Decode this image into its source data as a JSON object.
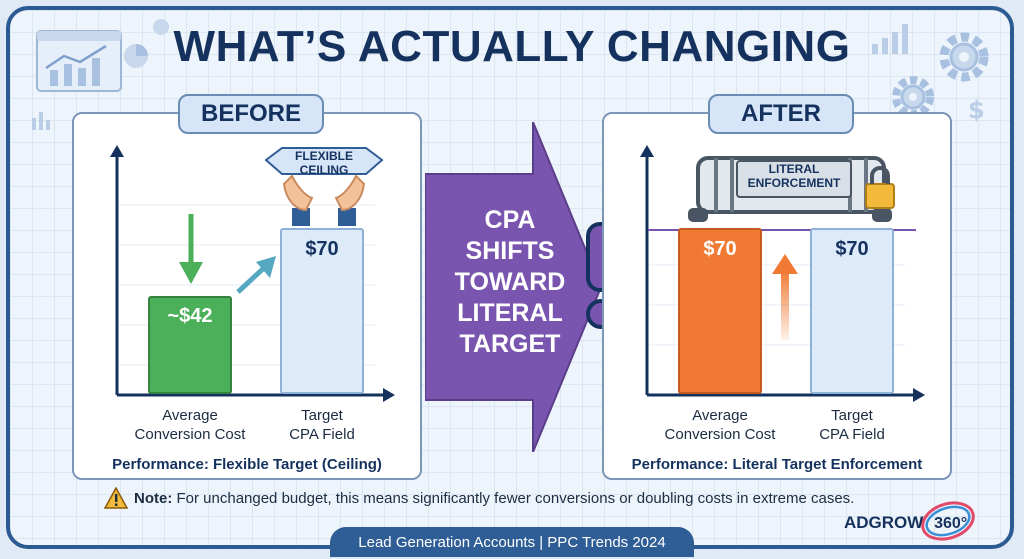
{
  "title": "WHAT’S ACTUALLY CHANGING",
  "before": {
    "tag": "BEFORE",
    "badge_line1": "FLEXIBLE",
    "badge_line2": "CEILING",
    "bar1_value": "~$42",
    "bar2_value": "$70",
    "bar1_label_line1": "Average",
    "bar1_label_line2": "Conversion Cost",
    "bar2_label_line1": "Target",
    "bar2_label_line2": "CPA Field",
    "caption": "Performance: Flexible Target (Ceiling)"
  },
  "middle": {
    "line1": "CPA",
    "line2": "SHIFTS",
    "line3": "TOWARD",
    "line4": "LITERAL",
    "line5": "TARGET"
  },
  "after": {
    "tag": "AFTER",
    "badge_line1": "LITERAL",
    "badge_line2": "ENFORCEMENT",
    "bar1_value": "$70",
    "bar2_value": "$70",
    "bar1_label_line1": "Average",
    "bar1_label_line2": "Conversion Cost",
    "bar2_label_line1": "Target",
    "bar2_label_line2": "CPA Field",
    "caption": "Performance: Literal Target Enforcement"
  },
  "note": {
    "label": "Note:",
    "text": " For unchanged budget, this means significantly fewer conversions or doubling costs in extreme cases."
  },
  "footer": "Lead Generation Accounts | PPC Trends 2024",
  "logo": {
    "text": "ADGROW",
    "suffix": "360°"
  },
  "colors": {
    "green": "#4caf5a",
    "orange": "#f07a34",
    "purple": "#7a55b0",
    "navy": "#15325e",
    "light_blue_bar": "#dceafa"
  }
}
